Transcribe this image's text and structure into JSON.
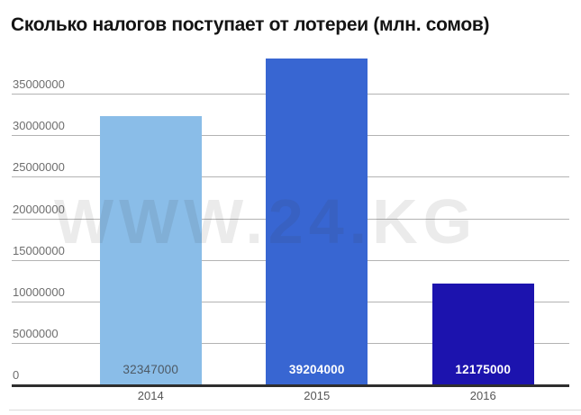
{
  "chart_data": {
    "type": "bar",
    "title": "Сколько налогов поступает от лотереи (млн. сомов)",
    "categories": [
      "2014",
      "2015",
      "2016"
    ],
    "values": [
      32347000,
      39204000,
      12175000
    ],
    "value_labels": [
      "32347000",
      "39204000",
      "12175000"
    ],
    "bar_colors": [
      "#8ABDE8",
      "#3866D2",
      "#1C13AE"
    ],
    "value_label_colors": [
      "#4D5964",
      "#FFFFFF",
      "#FFFFFF"
    ],
    "xlabel": "",
    "ylabel": "",
    "ylim": [
      0,
      40000000
    ],
    "yticks": [
      0,
      5000000,
      10000000,
      15000000,
      20000000,
      25000000,
      30000000,
      35000000
    ],
    "ytick_labels": [
      "0",
      "5000000",
      "10000000",
      "15000000",
      "20000000",
      "25000000",
      "30000000",
      "35000000"
    ],
    "grid": true,
    "legend": "none"
  },
  "watermark": {
    "text": "WWW.24.KG"
  },
  "colors": {
    "background": "#FFFFFF",
    "gridline": "#B3B3B3",
    "axis_line": "#2E2E2E",
    "title_text": "#141414",
    "ytick_text": "#6E6E6E",
    "xtick_text": "#565656",
    "divider": "#DBDBDB"
  }
}
